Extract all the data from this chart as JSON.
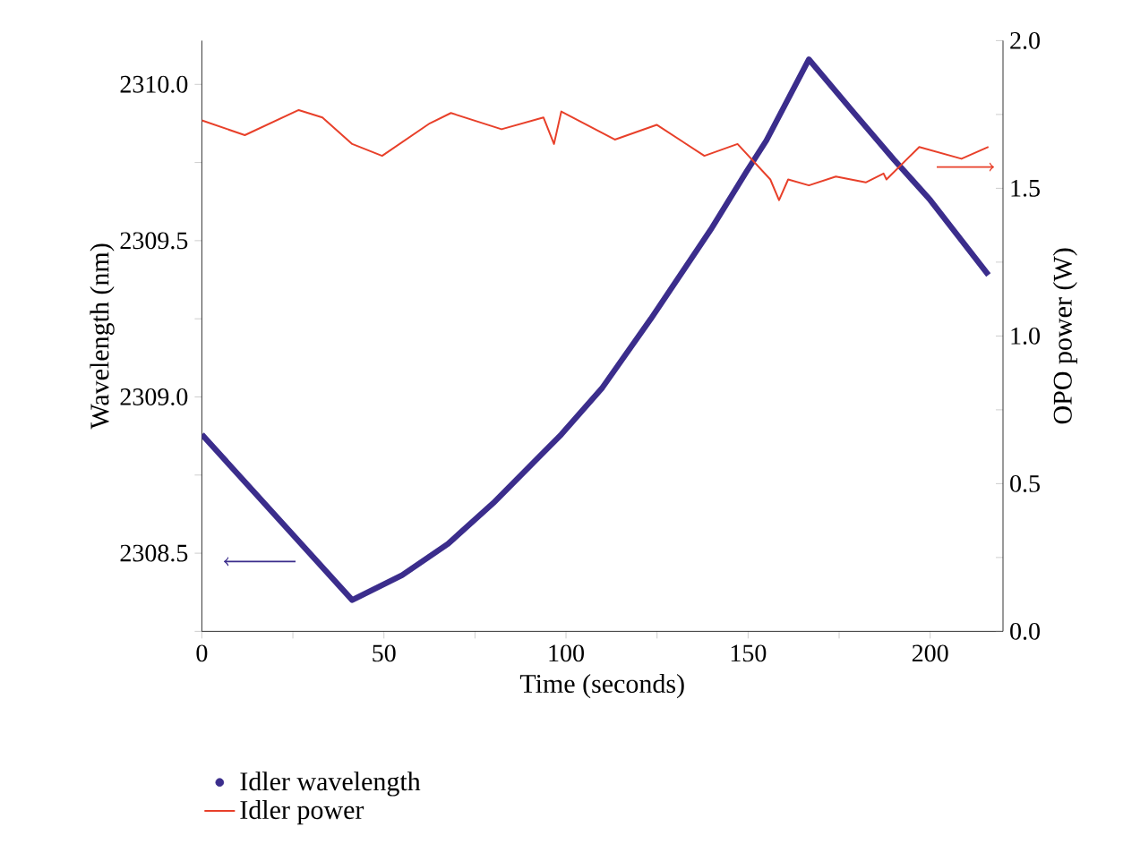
{
  "chart_data": {
    "type": "line",
    "xlabel": "Time (seconds)",
    "ylabel": "Wavelength (nm)",
    "y2label": "OPO power (W)",
    "xlim": [
      0,
      220
    ],
    "xticks": [
      0,
      {
        "value": 25,
        "label": null
      },
      50,
      {
        "value": 75,
        "label": null
      },
      100,
      {
        "value": 125,
        "label": null
      },
      150,
      {
        "value": 175,
        "label": null
      },
      200
    ],
    "ylim": [
      2308.25,
      2310.14
    ],
    "yticks": [
      {
        "value": 2308.25,
        "label": null
      },
      {
        "value": 2308.5,
        "label": "2308.5"
      },
      {
        "value": 2308.75,
        "label": null
      },
      {
        "value": 2309.0,
        "label": "2309.0"
      },
      {
        "value": 2309.25,
        "label": null
      },
      {
        "value": 2309.5,
        "label": "2309.5"
      },
      {
        "value": 2309.75,
        "label": null
      },
      {
        "value": 2310.0,
        "label": "2310.0"
      }
    ],
    "y2lim": [
      0,
      2.0
    ],
    "y2ticks": [
      {
        "value": 0,
        "label": "0.0"
      },
      {
        "value": 0.25,
        "label": null
      },
      {
        "value": 0.5,
        "label": "0.5"
      },
      {
        "value": 0.75,
        "label": null
      },
      {
        "value": 1.0,
        "label": "1.0"
      },
      {
        "value": 1.25,
        "label": null
      },
      {
        "value": 1.5,
        "label": "1.5"
      },
      {
        "value": 1.75,
        "label": null
      },
      {
        "value": 2.0,
        "label": "2.0"
      }
    ],
    "legend": "bottom",
    "series": [
      {
        "name": "Idler wavelength",
        "color": "#3b2d8c",
        "axis": "y",
        "x": [
          0,
          41.3,
          55,
          67.6,
          80,
          98.7,
          110,
          123.3,
          140,
          149.5,
          155,
          166.7,
          179,
          190,
          200,
          216
        ],
        "values": [
          2308.88,
          2308.35,
          2308.43,
          2308.53,
          2308.66,
          2308.88,
          2309.03,
          2309.25,
          2309.54,
          2309.72,
          2309.82,
          2310.08,
          2309.91,
          2309.76,
          2309.63,
          2309.39
        ]
      },
      {
        "name": "Idler power",
        "color": "#e8402a",
        "axis": "y2",
        "x": [
          0,
          11.8,
          26.6,
          33.1,
          41.3,
          49.5,
          62.6,
          68.4,
          82.3,
          93.8,
          96.7,
          98.7,
          113.4,
          124.9,
          138,
          147.1,
          156.1,
          158.5,
          161,
          166.7,
          174.1,
          182.3,
          187.2,
          188,
          197,
          208.6,
          216
        ],
        "values": [
          1.73,
          1.68,
          1.765,
          1.74,
          1.65,
          1.61,
          1.72,
          1.755,
          1.7,
          1.74,
          1.65,
          1.76,
          1.665,
          1.715,
          1.61,
          1.65,
          1.53,
          1.46,
          1.53,
          1.51,
          1.54,
          1.52,
          1.55,
          1.53,
          1.64,
          1.6,
          1.64
        ]
      }
    ]
  }
}
